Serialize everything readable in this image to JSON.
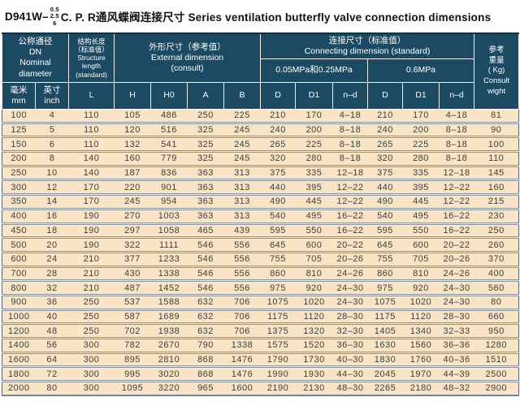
{
  "title": {
    "model": "D941W–",
    "pressures": [
      "0.5",
      "2.5",
      "6"
    ],
    "text": "C. P. R通风蝶阀连接尺寸 Series ventilation butterfly valve connection dimensions"
  },
  "table": {
    "groups": {
      "nominal_diameter": "公称通径\nDN\nNominal\ndiameter",
      "structure_length": "结构长度\n（标准值）\nStructure\nlength\n(standard)",
      "external_dimension": "外形尺寸（参考值）\nExternal dimension\n(consult)",
      "connecting_dimension": "连接尺寸（标准值）\nConnecting dimension (standard)",
      "pressure_low": "0.05MPa和0.25MPa",
      "pressure_high": "0.6MPa",
      "weight": "参考\n重量\n( Kg)\nConsult\nwight"
    },
    "sub_columns": [
      "毫米\nmm",
      "英寸\ninch",
      "L",
      "H",
      "H0",
      "A",
      "B",
      "D",
      "D1",
      "n–d",
      "D",
      "D1",
      "n–d"
    ],
    "rows": [
      [
        "100",
        "4",
        "110",
        "105",
        "486",
        "250",
        "225",
        "210",
        "170",
        "4–18",
        "210",
        "170",
        "4–18",
        "81"
      ],
      [
        "125",
        "5",
        "110",
        "120",
        "516",
        "325",
        "245",
        "240",
        "200",
        "8–18",
        "240",
        "200",
        "8–18",
        "90"
      ],
      [
        "150",
        "6",
        "110",
        "132",
        "541",
        "325",
        "245",
        "265",
        "225",
        "8–18",
        "265",
        "225",
        "8–18",
        "100"
      ],
      [
        "200",
        "8",
        "140",
        "160",
        "779",
        "325",
        "245",
        "320",
        "280",
        "8–18",
        "320",
        "280",
        "8–18",
        "110"
      ],
      [
        "250",
        "10",
        "140",
        "187",
        "836",
        "363",
        "313",
        "375",
        "335",
        "12–18",
        "375",
        "335",
        "12–18",
        "145"
      ],
      [
        "300",
        "12",
        "170",
        "220",
        "901",
        "363",
        "313",
        "440",
        "395",
        "12–22",
        "440",
        "395",
        "12–22",
        "160"
      ],
      [
        "350",
        "14",
        "170",
        "245",
        "954",
        "363",
        "313",
        "490",
        "445",
        "12–22",
        "490",
        "445",
        "12–22",
        "215"
      ],
      [
        "400",
        "16",
        "190",
        "270",
        "1003",
        "363",
        "313",
        "540",
        "495",
        "16–22",
        "540",
        "495",
        "16–22",
        "230"
      ],
      [
        "450",
        "18",
        "190",
        "297",
        "1058",
        "465",
        "439",
        "595",
        "550",
        "16–22",
        "595",
        "550",
        "16–22",
        "250"
      ],
      [
        "500",
        "20",
        "190",
        "322",
        "1111",
        "546",
        "556",
        "645",
        "600",
        "20–22",
        "645",
        "600",
        "20–22",
        "260"
      ],
      [
        "600",
        "24",
        "210",
        "377",
        "1233",
        "546",
        "556",
        "755",
        "705",
        "20–26",
        "755",
        "705",
        "20–26",
        "370"
      ],
      [
        "700",
        "28",
        "210",
        "430",
        "1338",
        "546",
        "556",
        "860",
        "810",
        "24–26",
        "860",
        "810",
        "24–26",
        "400"
      ],
      [
        "800",
        "32",
        "210",
        "487",
        "1452",
        "546",
        "556",
        "975",
        "920",
        "24–30",
        "975",
        "920",
        "24–30",
        "560"
      ],
      [
        "900",
        "36",
        "250",
        "537",
        "1588",
        "632",
        "706",
        "1075",
        "1020",
        "24–30",
        "1075",
        "1020",
        "24–30",
        "80"
      ],
      [
        "1000",
        "40",
        "250",
        "587",
        "1689",
        "632",
        "706",
        "1175",
        "1120",
        "28–30",
        "1175",
        "1120",
        "28–30",
        "660"
      ],
      [
        "1200",
        "48",
        "250",
        "702",
        "1938",
        "632",
        "706",
        "1375",
        "1320",
        "32–30",
        "1405",
        "1340",
        "32–33",
        "950"
      ],
      [
        "1400",
        "56",
        "300",
        "782",
        "2670",
        "790",
        "1338",
        "1575",
        "1520",
        "36–30",
        "1630",
        "1560",
        "36–36",
        "1280"
      ],
      [
        "1600",
        "64",
        "300",
        "895",
        "2810",
        "868",
        "1476",
        "1790",
        "1730",
        "40–30",
        "1830",
        "1760",
        "40–36",
        "1510"
      ],
      [
        "1800",
        "72",
        "300",
        "995",
        "3020",
        "868",
        "1476",
        "1990",
        "1930",
        "44–30",
        "2045",
        "1970",
        "44–39",
        "2500"
      ],
      [
        "2000",
        "80",
        "300",
        "1095",
        "3220",
        "965",
        "1600",
        "2190",
        "2130",
        "48–30",
        "2265",
        "2180",
        "48–32",
        "2900"
      ]
    ],
    "colors": {
      "header_bg": "#1d4a63",
      "header_text": "#ffffff",
      "row_bg": "#f9e4c6",
      "row_text": "#3e3e3e",
      "separator": "#8d949a"
    }
  }
}
